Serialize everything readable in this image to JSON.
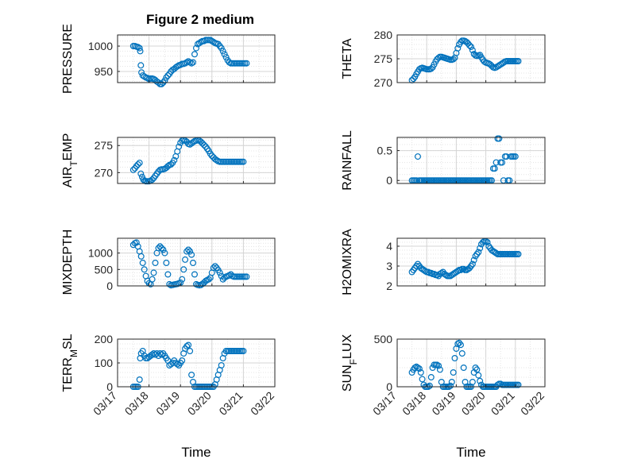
{
  "title": "Figure 2 medium",
  "marker_color": "#0072BD",
  "chart_data": [
    {
      "type": "scatter",
      "ylabel": "PRESSURE",
      "ylabel_sub": null,
      "ylim": [
        928,
        1022
      ],
      "yticks": [
        950,
        1000
      ],
      "ytick_labels": [
        "950",
        "1000"
      ],
      "x_range": [
        0,
        5
      ],
      "xtick_labels": [],
      "xlabel": "",
      "x": [
        0.5,
        0.55,
        0.6,
        0.65,
        0.7,
        0.72,
        0.74,
        0.76,
        0.8,
        0.85,
        0.9,
        0.95,
        1.0,
        1.05,
        1.1,
        1.15,
        1.2,
        1.25,
        1.3,
        1.35,
        1.4,
        1.45,
        1.5,
        1.55,
        1.6,
        1.65,
        1.7,
        1.75,
        1.8,
        1.85,
        1.9,
        1.95,
        2.0,
        2.05,
        2.1,
        2.15,
        2.2,
        2.25,
        2.3,
        2.35,
        2.4,
        2.45,
        2.5,
        2.55,
        2.6,
        2.65,
        2.7,
        2.75,
        2.8,
        2.85,
        2.9,
        2.95,
        3.0,
        3.05,
        3.1,
        3.15,
        3.2,
        3.25,
        3.3,
        3.35,
        3.4,
        3.45,
        3.5,
        3.55,
        3.6,
        3.65,
        3.7,
        3.75,
        3.8,
        3.85,
        3.9,
        3.95,
        4.0,
        4.05,
        4.1
      ],
      "y": [
        1000,
        1000,
        999,
        998,
        996,
        990,
        962,
        948,
        942,
        940,
        938,
        937,
        935,
        936,
        936,
        935,
        933,
        930,
        928,
        925,
        925,
        928,
        932,
        938,
        942,
        945,
        950,
        953,
        955,
        958,
        960,
        962,
        963,
        965,
        965,
        966,
        968,
        970,
        968,
        966,
        968,
        984,
        996,
        1004,
        1006,
        1008,
        1010,
        1010,
        1012,
        1012,
        1012,
        1012,
        1010,
        1008,
        1006,
        1005,
        1004,
        1000,
        996,
        990,
        984,
        978,
        972,
        968,
        966,
        966,
        966,
        966,
        966,
        966,
        966,
        966,
        966,
        966,
        966
      ]
    },
    {
      "type": "scatter",
      "ylabel": "THETA",
      "ylabel_sub": null,
      "ylim": [
        270,
        280
      ],
      "yticks": [
        270,
        275,
        280
      ],
      "ytick_labels": [
        "270",
        "275",
        "280"
      ],
      "x_range": [
        0,
        5
      ],
      "xtick_labels": [],
      "xlabel": "",
      "x": [
        0.5,
        0.55,
        0.6,
        0.65,
        0.7,
        0.75,
        0.8,
        0.85,
        0.9,
        0.95,
        1.0,
        1.05,
        1.1,
        1.15,
        1.2,
        1.25,
        1.3,
        1.35,
        1.4,
        1.45,
        1.5,
        1.55,
        1.6,
        1.65,
        1.7,
        1.75,
        1.8,
        1.85,
        1.9,
        1.95,
        2.0,
        2.05,
        2.1,
        2.15,
        2.2,
        2.25,
        2.3,
        2.35,
        2.4,
        2.45,
        2.5,
        2.55,
        2.6,
        2.65,
        2.7,
        2.75,
        2.8,
        2.85,
        2.9,
        2.95,
        3.0,
        3.05,
        3.1,
        3.15,
        3.2,
        3.25,
        3.3,
        3.35,
        3.4,
        3.45,
        3.5,
        3.55,
        3.6,
        3.65,
        3.7,
        3.75,
        3.8,
        3.85,
        3.9,
        3.95,
        4.0,
        4.05,
        4.1
      ],
      "y": [
        270.5,
        270.8,
        271.2,
        271.8,
        272.3,
        272.8,
        273.0,
        273.1,
        273.0,
        272.9,
        272.8,
        272.8,
        272.8,
        272.9,
        273.2,
        273.8,
        274.4,
        274.9,
        275.2,
        275.4,
        275.4,
        275.3,
        275.2,
        275.1,
        275.0,
        274.9,
        274.8,
        274.8,
        274.9,
        275.2,
        276.2,
        277.2,
        278.0,
        278.5,
        278.8,
        278.8,
        278.7,
        278.5,
        278.2,
        277.8,
        277.5,
        276.8,
        276.0,
        275.7,
        275.6,
        275.7,
        275.8,
        275.3,
        274.8,
        274.4,
        274.2,
        274.1,
        274.0,
        273.8,
        273.5,
        273.2,
        273.1,
        273.2,
        273.4,
        273.6,
        273.8,
        274.0,
        274.2,
        274.4,
        274.5,
        274.5,
        274.5,
        274.5,
        274.5,
        274.5,
        274.5,
        274.5,
        274.5
      ]
    },
    {
      "type": "scatter",
      "ylabel": "AIR",
      "ylabel_sub": "T",
      "ylabel_suffix": "EMP",
      "ylim": [
        268,
        276.5
      ],
      "yticks": [
        270,
        275
      ],
      "ytick_labels": [
        "270",
        "275"
      ],
      "x_range": [
        0,
        5
      ],
      "xtick_labels": [],
      "xlabel": "",
      "x": [
        0.5,
        0.55,
        0.6,
        0.65,
        0.7,
        0.74,
        0.78,
        0.82,
        0.86,
        0.9,
        0.95,
        1.0,
        1.05,
        1.1,
        1.15,
        1.2,
        1.25,
        1.3,
        1.35,
        1.4,
        1.45,
        1.5,
        1.55,
        1.6,
        1.65,
        1.7,
        1.75,
        1.8,
        1.85,
        1.9,
        1.95,
        2.0,
        2.05,
        2.1,
        2.15,
        2.2,
        2.25,
        2.3,
        2.35,
        2.4,
        2.45,
        2.5,
        2.55,
        2.6,
        2.65,
        2.7,
        2.75,
        2.8,
        2.85,
        2.9,
        2.95,
        3.0,
        3.05,
        3.1,
        3.15,
        3.2,
        3.25,
        3.3,
        3.35,
        3.4,
        3.45,
        3.5,
        3.55,
        3.6,
        3.65,
        3.7,
        3.75,
        3.8,
        3.85,
        3.9,
        3.95,
        4.0
      ],
      "y": [
        270.5,
        270.8,
        271.2,
        271.5,
        271.8,
        269.8,
        269.2,
        268.7,
        268.5,
        268.4,
        268.4,
        268.4,
        268.5,
        268.7,
        269.0,
        269.4,
        269.8,
        270.2,
        270.5,
        270.6,
        270.6,
        270.7,
        270.9,
        271.2,
        271.4,
        271.5,
        271.8,
        272.3,
        273.0,
        273.9,
        274.8,
        275.5,
        275.9,
        276.0,
        275.9,
        275.7,
        275.3,
        275.2,
        275.4,
        275.6,
        275.8,
        275.9,
        276.0,
        275.9,
        275.7,
        275.4,
        275.1,
        274.8,
        274.4,
        274.0,
        273.5,
        273.1,
        272.8,
        272.5,
        272.3,
        272.1,
        272.0,
        272.0,
        272.0,
        272.0,
        272.0,
        272.0,
        272.0,
        272.0,
        272.0,
        272.0,
        272.0,
        272.0,
        272.0,
        272.0,
        272.0,
        272.0
      ]
    },
    {
      "type": "scatter",
      "ylabel": "RAINFALL",
      "ylabel_sub": null,
      "ylim": [
        -0.05,
        0.72
      ],
      "yticks": [
        0,
        0.5
      ],
      "ytick_labels": [
        "0",
        "0.5"
      ],
      "x_range": [
        0,
        5
      ],
      "xtick_labels": [],
      "xlabel": "",
      "x": [
        0.5,
        0.55,
        0.6,
        0.65,
        0.7,
        0.75,
        0.8,
        0.85,
        0.9,
        0.95,
        1.0,
        1.05,
        1.1,
        1.15,
        1.2,
        1.25,
        1.3,
        1.35,
        1.4,
        1.45,
        1.5,
        1.55,
        1.6,
        1.65,
        1.7,
        1.75,
        1.8,
        1.85,
        1.9,
        1.95,
        2.0,
        2.05,
        2.1,
        2.15,
        2.2,
        2.25,
        2.3,
        2.35,
        2.4,
        2.45,
        2.5,
        2.55,
        2.6,
        2.65,
        2.7,
        2.75,
        2.8,
        2.85,
        2.9,
        2.95,
        3.0,
        3.05,
        3.1,
        3.15,
        3.2,
        3.25,
        3.3,
        3.35,
        3.4,
        3.45,
        3.5,
        3.55,
        3.6,
        3.65,
        3.7,
        3.75,
        3.8,
        3.85,
        3.9,
        3.95,
        4.0
      ],
      "y": [
        0,
        0,
        0,
        0,
        0.4,
        0,
        0,
        0,
        0,
        0,
        0,
        0,
        0,
        0,
        0,
        0,
        0,
        0,
        0,
        0,
        0,
        0,
        0,
        0,
        0,
        0,
        0,
        0,
        0,
        0,
        0,
        0,
        0,
        0,
        0,
        0,
        0,
        0,
        0,
        0,
        0,
        0,
        0,
        0,
        0,
        0,
        0,
        0,
        0,
        0,
        0,
        0,
        0,
        0,
        0,
        0.2,
        0.2,
        0.3,
        0.7,
        0.7,
        0.3,
        0.3,
        0,
        0.4,
        0.4,
        0,
        0,
        0.4,
        0.4,
        0.4,
        0.4
      ]
    },
    {
      "type": "scatter",
      "ylabel": "MIXDEPTH",
      "ylabel_sub": null,
      "ylim": [
        0,
        1450
      ],
      "yticks": [
        0,
        500,
        1000
      ],
      "ytick_labels": [
        "0",
        "500",
        "1000"
      ],
      "x_range": [
        0,
        5
      ],
      "xtick_labels": [],
      "xlabel": "",
      "x": [
        0.5,
        0.55,
        0.6,
        0.65,
        0.7,
        0.75,
        0.8,
        0.85,
        0.9,
        0.95,
        1.0,
        1.05,
        1.1,
        1.15,
        1.2,
        1.25,
        1.3,
        1.35,
        1.4,
        1.45,
        1.5,
        1.55,
        1.6,
        1.65,
        1.7,
        1.75,
        1.8,
        1.85,
        1.9,
        1.95,
        2.0,
        2.05,
        2.1,
        2.15,
        2.2,
        2.25,
        2.3,
        2.35,
        2.4,
        2.45,
        2.5,
        2.55,
        2.6,
        2.65,
        2.7,
        2.75,
        2.8,
        2.85,
        2.9,
        2.95,
        3.0,
        3.05,
        3.1,
        3.15,
        3.2,
        3.25,
        3.3,
        3.35,
        3.4,
        3.45,
        3.5,
        3.55,
        3.6,
        3.65,
        3.7,
        3.75,
        3.8,
        3.85,
        3.9,
        3.95,
        4.0,
        4.05,
        4.1
      ],
      "y": [
        1250,
        1300,
        1320,
        1200,
        1050,
        900,
        700,
        500,
        300,
        150,
        80,
        50,
        200,
        400,
        700,
        1000,
        1150,
        1200,
        1150,
        1100,
        1000,
        700,
        350,
        50,
        20,
        30,
        40,
        50,
        60,
        80,
        100,
        200,
        500,
        800,
        1050,
        1100,
        1050,
        950,
        700,
        350,
        50,
        30,
        20,
        30,
        60,
        100,
        150,
        180,
        200,
        250,
        400,
        550,
        600,
        550,
        480,
        400,
        300,
        200,
        250,
        280,
        300,
        320,
        350,
        300,
        280,
        280,
        280,
        280,
        280,
        280,
        280,
        280,
        280
      ]
    },
    {
      "type": "scatter",
      "ylabel": "H2OMIXRA",
      "ylabel_sub": null,
      "ylim": [
        2,
        4.4
      ],
      "yticks": [
        2,
        3,
        4
      ],
      "ytick_labels": [
        "2",
        "3",
        "4"
      ],
      "x_range": [
        0,
        5
      ],
      "xtick_labels": [],
      "xlabel": "",
      "x": [
        0.5,
        0.55,
        0.6,
        0.65,
        0.7,
        0.75,
        0.8,
        0.85,
        0.9,
        0.95,
        1.0,
        1.05,
        1.1,
        1.15,
        1.2,
        1.25,
        1.3,
        1.35,
        1.4,
        1.45,
        1.5,
        1.55,
        1.6,
        1.65,
        1.7,
        1.75,
        1.8,
        1.85,
        1.9,
        1.95,
        2.0,
        2.05,
        2.1,
        2.15,
        2.2,
        2.25,
        2.3,
        2.35,
        2.4,
        2.45,
        2.5,
        2.55,
        2.6,
        2.65,
        2.7,
        2.75,
        2.8,
        2.85,
        2.9,
        2.95,
        3.0,
        3.05,
        3.1,
        3.15,
        3.2,
        3.25,
        3.3,
        3.35,
        3.4,
        3.45,
        3.5,
        3.55,
        3.6,
        3.65,
        3.7,
        3.75,
        3.8,
        3.85,
        3.9,
        3.95,
        4.0,
        4.05,
        4.1
      ],
      "y": [
        2.7,
        2.8,
        2.9,
        3.0,
        3.1,
        3.0,
        2.9,
        2.85,
        2.8,
        2.75,
        2.7,
        2.7,
        2.65,
        2.65,
        2.6,
        2.6,
        2.55,
        2.55,
        2.5,
        2.6,
        2.65,
        2.7,
        2.6,
        2.55,
        2.5,
        2.5,
        2.5,
        2.55,
        2.6,
        2.65,
        2.7,
        2.75,
        2.8,
        2.8,
        2.85,
        2.85,
        2.8,
        2.8,
        2.85,
        2.9,
        3.0,
        3.1,
        3.3,
        3.5,
        3.6,
        3.7,
        3.9,
        4.1,
        4.2,
        4.25,
        4.25,
        4.2,
        4.0,
        3.9,
        3.8,
        3.75,
        3.7,
        3.65,
        3.6,
        3.6,
        3.6,
        3.6,
        3.6,
        3.6,
        3.6,
        3.6,
        3.6,
        3.6,
        3.6,
        3.6,
        3.6,
        3.6,
        3.6
      ]
    },
    {
      "type": "scatter",
      "ylabel": "TERR",
      "ylabel_sub": "M",
      "ylabel_suffix": "SL",
      "ylim": [
        0,
        200
      ],
      "yticks": [
        0,
        100,
        200
      ],
      "ytick_labels": [
        "0",
        "100",
        "200"
      ],
      "x_range": [
        0,
        5
      ],
      "xtick_labels": [
        "03/17",
        "03/18",
        "03/19",
        "03/20",
        "03/21",
        "03/22"
      ],
      "xlabel": "Time",
      "x": [
        0.5,
        0.55,
        0.6,
        0.65,
        0.7,
        0.72,
        0.75,
        0.8,
        0.85,
        0.9,
        0.95,
        1.0,
        1.05,
        1.1,
        1.15,
        1.2,
        1.25,
        1.3,
        1.35,
        1.4,
        1.45,
        1.5,
        1.55,
        1.6,
        1.65,
        1.7,
        1.75,
        1.8,
        1.85,
        1.9,
        1.95,
        2.0,
        2.05,
        2.1,
        2.15,
        2.2,
        2.25,
        2.3,
        2.35,
        2.4,
        2.45,
        2.5,
        2.55,
        2.6,
        2.65,
        2.7,
        2.75,
        2.8,
        2.85,
        2.9,
        2.95,
        3.0,
        3.05,
        3.1,
        3.15,
        3.2,
        3.25,
        3.3,
        3.35,
        3.4,
        3.45,
        3.5,
        3.55,
        3.6,
        3.65,
        3.7,
        3.75,
        3.8,
        3.85,
        3.9,
        3.95,
        4.0
      ],
      "y": [
        0,
        0,
        0,
        0,
        30,
        120,
        140,
        150,
        130,
        120,
        120,
        125,
        130,
        135,
        140,
        135,
        140,
        130,
        140,
        135,
        140,
        130,
        120,
        110,
        90,
        95,
        100,
        110,
        100,
        95,
        90,
        100,
        110,
        140,
        160,
        170,
        175,
        150,
        50,
        20,
        0,
        0,
        0,
        0,
        0,
        0,
        0,
        0,
        0,
        0,
        0,
        0,
        0,
        10,
        30,
        50,
        70,
        90,
        120,
        140,
        150,
        150,
        150,
        150,
        150,
        150,
        150,
        150,
        150,
        150,
        150,
        150
      ]
    },
    {
      "type": "scatter",
      "ylabel": "SUN",
      "ylabel_sub": "F",
      "ylabel_suffix": "LUX",
      "ylim": [
        0,
        500
      ],
      "yticks": [
        0,
        500
      ],
      "ytick_labels": [
        "0",
        "500"
      ],
      "x_range": [
        0,
        5
      ],
      "xtick_labels": [
        "03/17",
        "03/18",
        "03/19",
        "03/20",
        "03/21",
        "03/22"
      ],
      "xlabel": "Time",
      "x": [
        0.5,
        0.55,
        0.6,
        0.65,
        0.7,
        0.75,
        0.8,
        0.85,
        0.9,
        0.95,
        1.0,
        1.05,
        1.1,
        1.15,
        1.2,
        1.25,
        1.3,
        1.35,
        1.4,
        1.45,
        1.5,
        1.55,
        1.6,
        1.65,
        1.7,
        1.75,
        1.8,
        1.85,
        1.9,
        1.95,
        2.0,
        2.05,
        2.1,
        2.15,
        2.2,
        2.25,
        2.3,
        2.35,
        2.4,
        2.45,
        2.5,
        2.55,
        2.6,
        2.65,
        2.7,
        2.75,
        2.8,
        2.85,
        2.9,
        2.95,
        3.0,
        3.05,
        3.1,
        3.15,
        3.2,
        3.25,
        3.3,
        3.35,
        3.4,
        3.45,
        3.5,
        3.55,
        3.6,
        3.65,
        3.7,
        3.75,
        3.8,
        3.85,
        3.9,
        3.95,
        4.0,
        4.05,
        4.1
      ],
      "y": [
        150,
        180,
        200,
        210,
        200,
        190,
        150,
        80,
        20,
        0,
        0,
        0,
        10,
        100,
        200,
        230,
        230,
        230,
        220,
        180,
        50,
        0,
        0,
        0,
        0,
        0,
        10,
        50,
        150,
        300,
        400,
        450,
        460,
        440,
        350,
        200,
        50,
        0,
        0,
        0,
        0,
        50,
        150,
        200,
        180,
        120,
        60,
        20,
        0,
        0,
        0,
        0,
        0,
        0,
        0,
        0,
        0,
        0,
        20,
        30,
        30,
        20,
        20,
        20,
        20,
        20,
        20,
        20,
        20,
        20,
        20,
        20,
        20
      ]
    }
  ]
}
